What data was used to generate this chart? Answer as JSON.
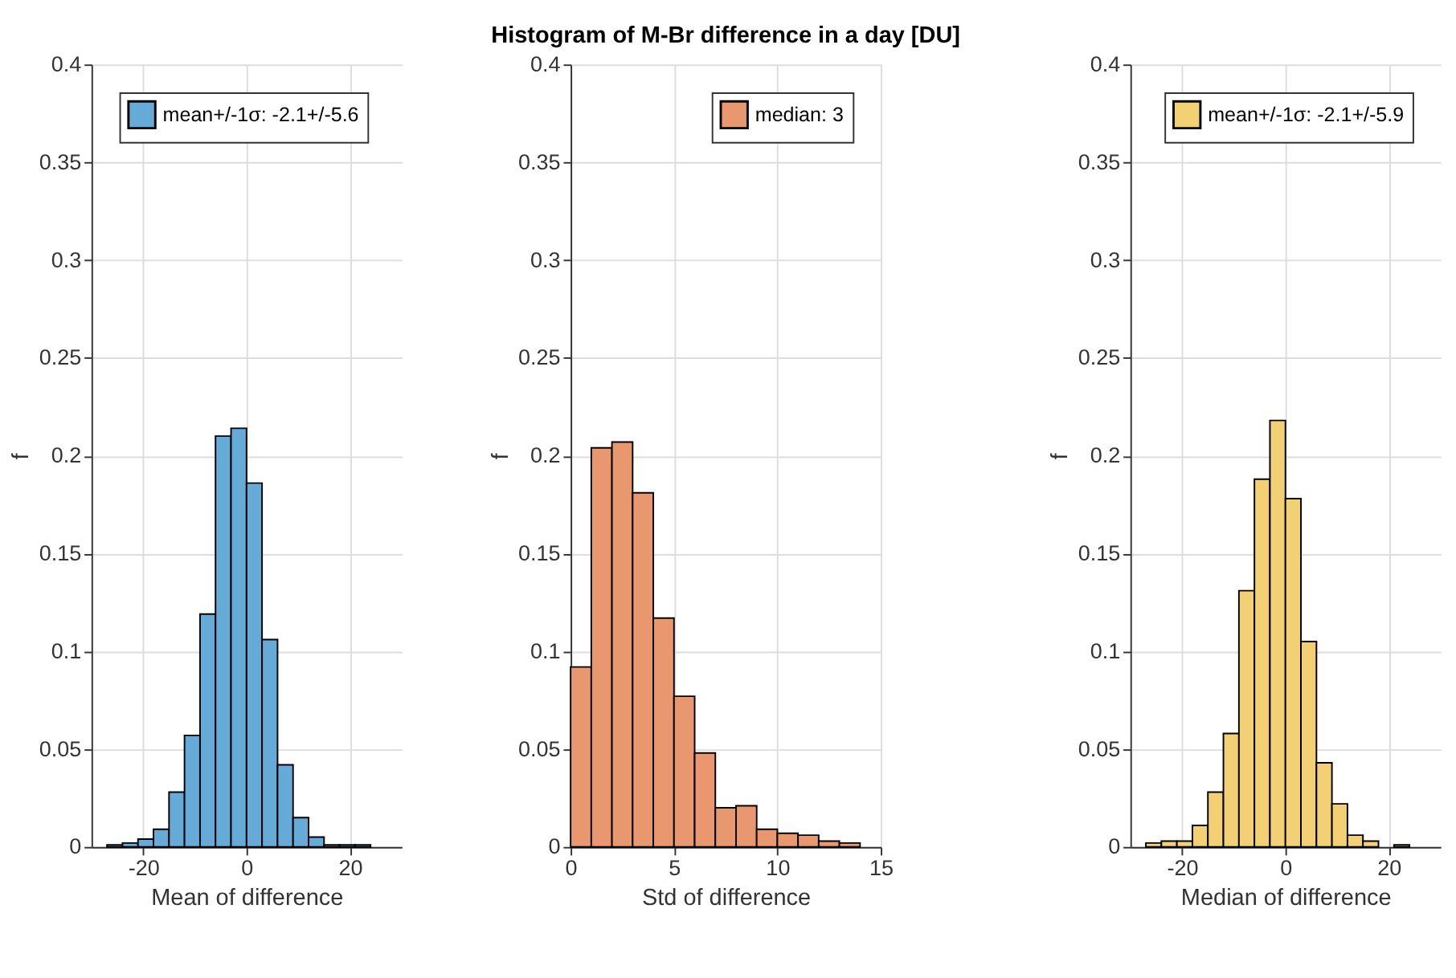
{
  "chart_data": [
    {
      "type": "histogram",
      "xlabel": "Mean of difference",
      "ylabel": "f",
      "bins": [
        -27,
        -24,
        -21,
        -18,
        -15,
        -12,
        -9,
        -6,
        -3,
        0,
        3,
        6,
        9,
        12,
        15,
        18,
        21,
        24
      ],
      "series": [
        {
          "name": "mean+/-1σ: -2.1+/-5.6",
          "color": "#66aad7",
          "values": [
            0.001,
            0.002,
            0.004,
            0.009,
            0.028,
            0.057,
            0.119,
            0.21,
            0.214,
            0.186,
            0.106,
            0.042,
            0.015,
            0.005,
            0.001,
            0.001,
            0.001
          ]
        }
      ],
      "xlim": [
        -30,
        30
      ],
      "xticks": [
        -20,
        0,
        20
      ],
      "ylim": [
        0,
        0.4
      ],
      "yticks": [
        0,
        0.05,
        0.1,
        0.15,
        0.2,
        0.25,
        0.3,
        0.35,
        0.4
      ],
      "grid": true,
      "legend": "top left"
    },
    {
      "type": "histogram",
      "title": "Histogram of M-Br difference in a day [DU]",
      "xlabel": "Std of difference",
      "ylabel": "f",
      "bins": [
        0,
        1,
        2,
        3,
        4,
        5,
        6,
        7,
        8,
        9,
        10,
        11,
        12,
        13,
        14
      ],
      "series": [
        {
          "name": "median: 3",
          "color": "#e8976f",
          "values": [
            0.092,
            0.204,
            0.207,
            0.181,
            0.117,
            0.077,
            0.048,
            0.02,
            0.021,
            0.009,
            0.007,
            0.006,
            0.003,
            0.002
          ]
        }
      ],
      "xlim": [
        0,
        15
      ],
      "xticks": [
        0,
        5,
        10,
        15
      ],
      "ylim": [
        0,
        0.4
      ],
      "yticks": [
        0,
        0.05,
        0.1,
        0.15,
        0.2,
        0.25,
        0.3,
        0.35,
        0.4
      ],
      "grid": true,
      "legend": "top right"
    },
    {
      "type": "histogram",
      "xlabel": "Median of difference",
      "ylabel": "f",
      "bins": [
        -27,
        -24,
        -21,
        -18,
        -15,
        -12,
        -9,
        -6,
        -3,
        0,
        3,
        6,
        9,
        12,
        15,
        18,
        21,
        24
      ],
      "series": [
        {
          "name": "mean+/-1σ: -2.1+/-5.9",
          "color": "#f2d073",
          "values": [
            0.002,
            0.003,
            0.003,
            0.011,
            0.028,
            0.058,
            0.131,
            0.188,
            0.218,
            0.178,
            0.105,
            0.043,
            0.022,
            0.006,
            0.003,
            null,
            0.001
          ]
        }
      ],
      "xlim": [
        -30,
        30
      ],
      "xticks": [
        -20,
        0,
        20
      ],
      "ylim": [
        0,
        0.4
      ],
      "yticks": [
        0,
        0.05,
        0.1,
        0.15,
        0.2,
        0.25,
        0.3,
        0.35,
        0.4
      ],
      "grid": true,
      "legend": "top right"
    }
  ]
}
